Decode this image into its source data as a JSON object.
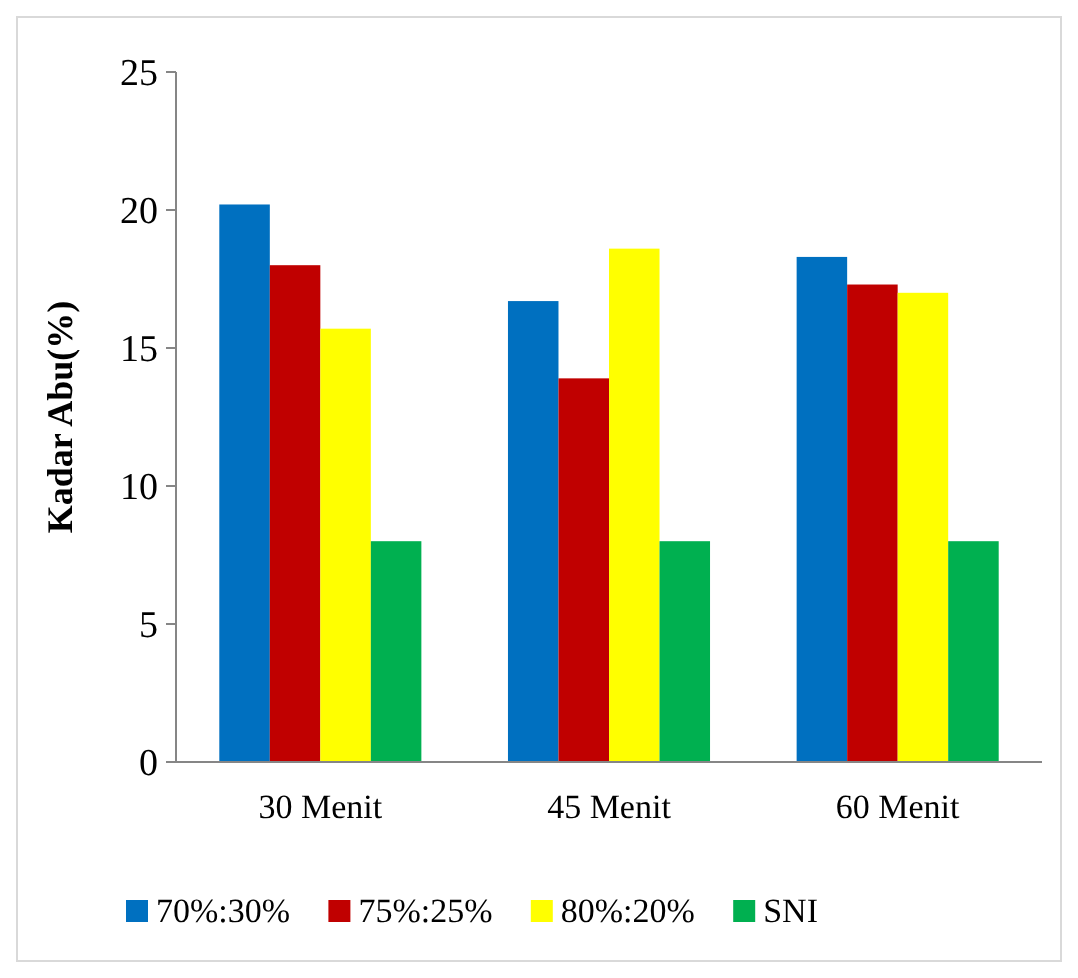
{
  "chart_data": {
    "type": "bar",
    "ylabel": "Kadar Abu(%)",
    "categories": [
      "30 Menit",
      "45 Menit",
      "60 Menit"
    ],
    "series": [
      {
        "name": "70%:30%",
        "color": "#0070c0",
        "values": [
          20.2,
          16.7,
          18.3
        ]
      },
      {
        "name": "75%:25%",
        "color": "#c00000",
        "values": [
          18.0,
          13.9,
          17.3
        ]
      },
      {
        "name": "80%:20%",
        "color": "#ffff00",
        "values": [
          15.7,
          18.6,
          17.0
        ]
      },
      {
        "name": "SNI",
        "color": "#00b050",
        "values": [
          8,
          8,
          8
        ]
      }
    ],
    "ylim": [
      0,
      25
    ],
    "yticks": [
      0,
      5,
      10,
      15,
      20,
      25
    ],
    "grid": false,
    "legend": "bottom"
  }
}
